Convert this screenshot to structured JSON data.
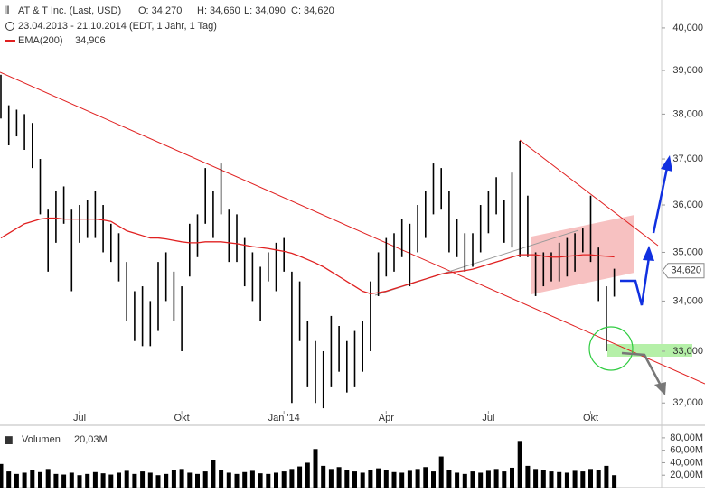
{
  "chart_data": {
    "type": "ohlc",
    "log": true,
    "header": {
      "title": "AT & T Inc. (Last, USD)",
      "open": "O: 34,270",
      "high": "H: 34,660",
      "low": "L: 34,090",
      "close": "C: 34,620",
      "period": "23.04.2013 - 21.10.2014 (EDT, 1 Jahr, 1 Tag)",
      "ema_name": "EMA(200)",
      "ema_value": "34,906"
    },
    "categories": [
      null,
      null,
      null,
      null,
      null,
      null,
      null,
      null,
      null,
      null,
      "Jul",
      null,
      null,
      null,
      null,
      null,
      null,
      null,
      null,
      null,
      null,
      null,
      null,
      "Okt",
      null,
      null,
      null,
      null,
      null,
      null,
      null,
      null,
      null,
      null,
      null,
      null,
      "Jan '14",
      null,
      null,
      null,
      null,
      null,
      null,
      null,
      null,
      null,
      null,
      null,
      null,
      "Apr",
      null,
      null,
      null,
      null,
      null,
      null,
      null,
      null,
      null,
      null,
      null,
      null,
      "Jul",
      null,
      null,
      null,
      null,
      null,
      null,
      null,
      null,
      null,
      null,
      null,
      null,
      "Okt",
      null,
      null,
      null
    ],
    "series": [
      {
        "name": "High",
        "color": "#000000",
        "values": [
          38.9,
          38.2,
          38.1,
          38.0,
          37.8,
          37.0,
          35.9,
          36.3,
          36.4,
          35.9,
          36.0,
          36.1,
          36.3,
          36.0,
          35.6,
          35.4,
          34.8,
          34.2,
          34.3,
          34.0,
          34.8,
          35.0,
          34.6,
          34.3,
          35.6,
          35.8,
          36.8,
          36.3,
          36.9,
          35.9,
          35.8,
          35.3,
          35.0,
          34.7,
          35.0,
          35.2,
          35.3,
          34.6,
          34.4,
          33.6,
          33.2,
          33.0,
          33.7,
          33.5,
          33.2,
          33.4,
          33.6,
          34.4,
          35.0,
          35.3,
          35.4,
          35.7,
          35.6,
          36.0,
          36.3,
          36.9,
          36.8,
          36.3,
          35.7,
          35.4,
          35.4,
          36.0,
          36.3,
          36.6,
          36.1,
          36.7,
          37.4,
          36.2,
          35.0,
          35.0,
          35.0,
          35.2,
          35.3,
          35.4,
          35.5,
          36.2,
          35.1,
          34.3,
          34.66
        ]
      },
      {
        "name": "Low",
        "color": "#000000",
        "values": [
          37.9,
          37.3,
          37.5,
          37.2,
          36.8,
          35.8,
          34.6,
          35.2,
          35.6,
          34.2,
          35.2,
          35.3,
          35.3,
          35.0,
          34.8,
          34.4,
          33.6,
          33.2,
          33.1,
          33.1,
          33.4,
          34.0,
          33.6,
          33.0,
          34.5,
          34.9,
          35.6,
          35.3,
          35.8,
          34.8,
          34.8,
          34.3,
          34.0,
          33.6,
          34.4,
          34.2,
          34.6,
          32.0,
          33.2,
          32.3,
          32.0,
          31.9,
          32.3,
          32.6,
          32.2,
          32.3,
          32.6,
          33.0,
          34.1,
          34.5,
          34.6,
          34.9,
          34.3,
          35.0,
          35.3,
          35.8,
          35.9,
          35.0,
          34.9,
          34.6,
          34.7,
          35.0,
          35.4,
          35.8,
          35.2,
          35.1,
          34.9,
          34.9,
          34.1,
          34.3,
          34.4,
          34.4,
          34.5,
          34.6,
          35.0,
          34.8,
          34.0,
          33.0,
          34.09
        ]
      },
      {
        "name": "EMA(200)",
        "color": "#e02020",
        "values": [
          35.3,
          35.4,
          35.5,
          35.6,
          35.65,
          35.7,
          35.72,
          35.72,
          35.7,
          35.7,
          35.7,
          35.7,
          35.7,
          35.68,
          35.65,
          35.55,
          35.45,
          35.4,
          35.35,
          35.3,
          35.3,
          35.28,
          35.25,
          35.22,
          35.2,
          35.2,
          35.22,
          35.22,
          35.22,
          35.2,
          35.18,
          35.15,
          35.12,
          35.1,
          35.08,
          35.05,
          35.02,
          34.98,
          34.92,
          34.85,
          34.78,
          34.7,
          34.6,
          34.5,
          34.4,
          34.3,
          34.2,
          34.15,
          34.17,
          34.2,
          34.25,
          34.3,
          34.35,
          34.4,
          34.45,
          34.5,
          34.55,
          34.58,
          34.6,
          34.62,
          34.65,
          34.7,
          34.75,
          34.8,
          34.85,
          34.9,
          34.95,
          34.95,
          34.95,
          34.92,
          34.9,
          34.9,
          34.92,
          34.93,
          34.95,
          34.95,
          34.93,
          34.92,
          34.906
        ]
      }
    ],
    "last": {
      "value": 34.62,
      "label": "34,620"
    },
    "ylim": [
      31.85,
      40.67
    ],
    "yticks": [
      {
        "value": 40,
        "label": "40,000"
      },
      {
        "value": 39,
        "label": "39,000"
      },
      {
        "value": 38,
        "label": "38,000"
      },
      {
        "value": 37,
        "label": "37,000"
      },
      {
        "value": 36,
        "label": "36,000"
      },
      {
        "value": 35,
        "label": "35,000"
      },
      {
        "value": 34,
        "label": "34,000"
      },
      {
        "value": 33,
        "label": "33,000"
      },
      {
        "value": 32,
        "label": "32,000"
      }
    ],
    "volume": {
      "name": "Volumen",
      "current": "20,03M",
      "color": "#000000",
      "ylim": [
        0,
        90
      ],
      "yticks": [
        {
          "value": 80,
          "label": "80,00M"
        },
        {
          "value": 60,
          "label": "60,00M"
        },
        {
          "value": 40,
          "label": "40,00M"
        },
        {
          "value": 20,
          "label": "20,00M"
        }
      ],
      "values": [
        38,
        26,
        22,
        24,
        28,
        25,
        30,
        22,
        21,
        24,
        20,
        22,
        25,
        23,
        21,
        24,
        27,
        22,
        26,
        24,
        20,
        22,
        28,
        30,
        24,
        22,
        26,
        45,
        28,
        24,
        22,
        25,
        27,
        23,
        22,
        24,
        26,
        30,
        34,
        40,
        62,
        35,
        30,
        33,
        28,
        26,
        24,
        29,
        31,
        28,
        25,
        24,
        27,
        30,
        33,
        26,
        50,
        28,
        24,
        22,
        26,
        24,
        27,
        30,
        26,
        32,
        75,
        35,
        30,
        28,
        26,
        25,
        24,
        27,
        26,
        30,
        28,
        35,
        20
      ]
    }
  }
}
